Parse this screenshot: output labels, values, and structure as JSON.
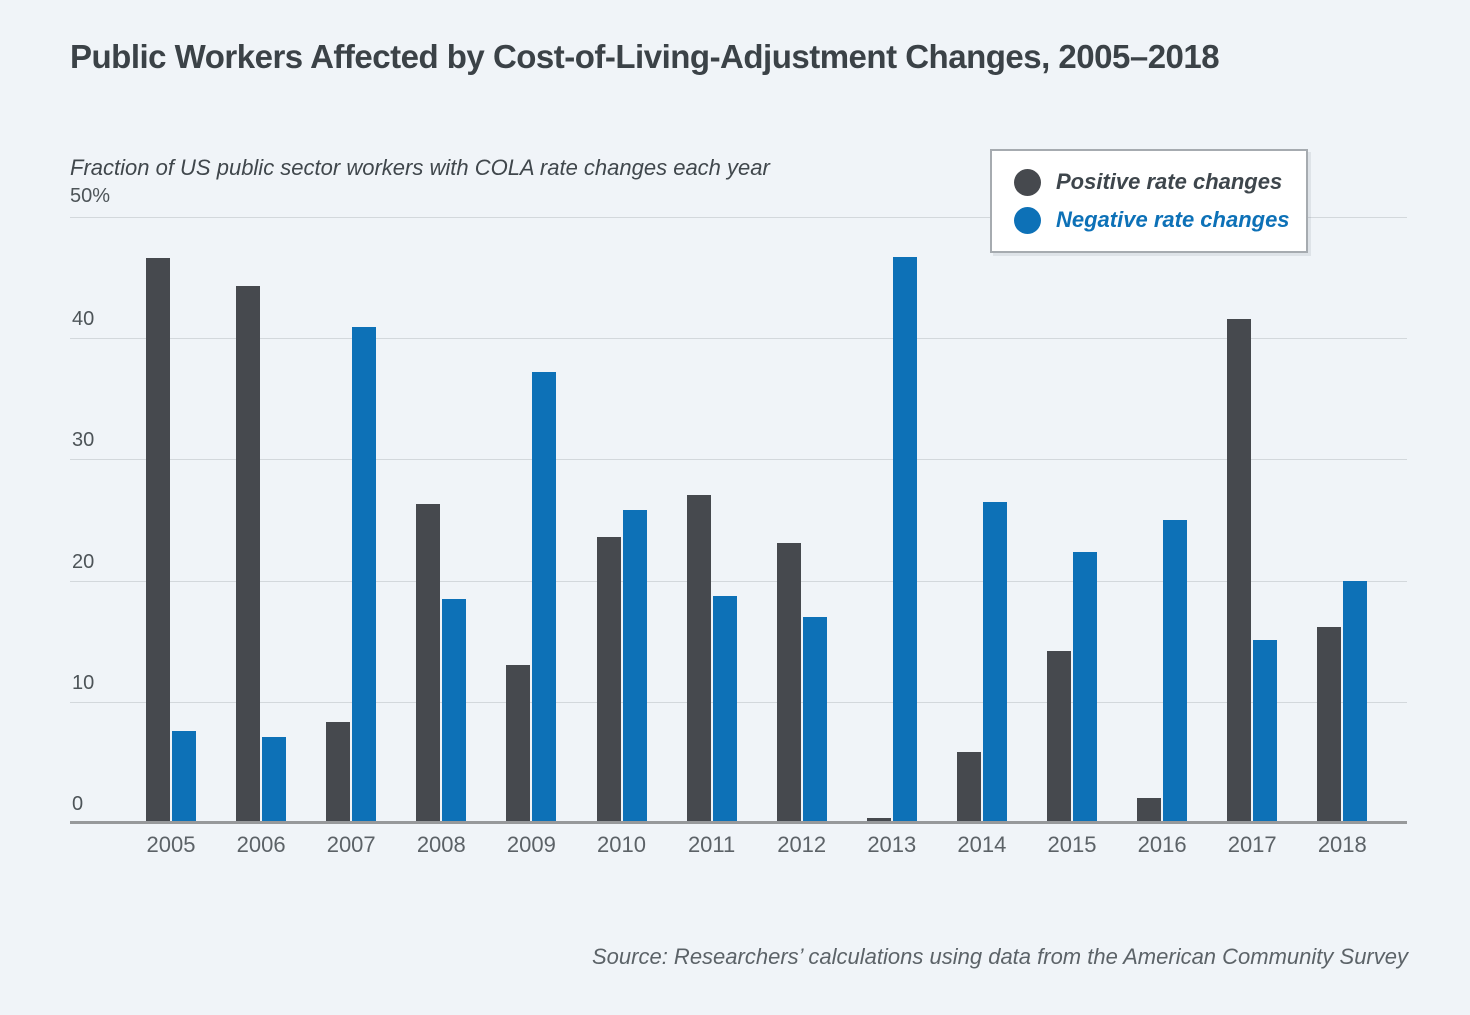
{
  "page": {
    "background": "#f0f4f8"
  },
  "header": {
    "title": "Public Workers Affected by Cost-of-Living-Adjustment Changes, 2005–2018"
  },
  "chart_data": {
    "type": "bar",
    "title": "Public Workers Affected by Cost-of-Living-Adjustment Changes, 2005–2018",
    "subtitle": "Fraction of US public sector workers with COLA rate changes each year",
    "categories": [
      "2005",
      "2006",
      "2007",
      "2008",
      "2009",
      "2010",
      "2011",
      "2012",
      "2013",
      "2014",
      "2015",
      "2016",
      "2017",
      "2018"
    ],
    "series": [
      {
        "name": "Positive rate changes",
        "color": "#46494e",
        "values": [
          46.6,
          44.3,
          8.3,
          26.3,
          13.0,
          23.6,
          27.1,
          23.1,
          0.4,
          5.9,
          14.2,
          2.1,
          41.6,
          16.2
        ]
      },
      {
        "name": "Negative rate changes",
        "color": "#0d71b7",
        "values": [
          7.6,
          7.1,
          40.9,
          18.5,
          37.2,
          25.8,
          18.7,
          17.0,
          46.7,
          26.5,
          22.4,
          25.0,
          15.1,
          20.0
        ]
      }
    ],
    "ylabel": "",
    "xlabel": "",
    "ylim": [
      0,
      50
    ],
    "ytick_interval": 10,
    "ytick_labels": [
      "0",
      "10",
      "20",
      "30",
      "40",
      "50%"
    ],
    "grid": true,
    "legend_position": "top-right"
  },
  "legend": {
    "positive_label": "Positive rate changes",
    "negative_label": "Negative rate changes"
  },
  "footer": {
    "source": "Source: Researchers’ calculations using data from the American Community Survey"
  }
}
